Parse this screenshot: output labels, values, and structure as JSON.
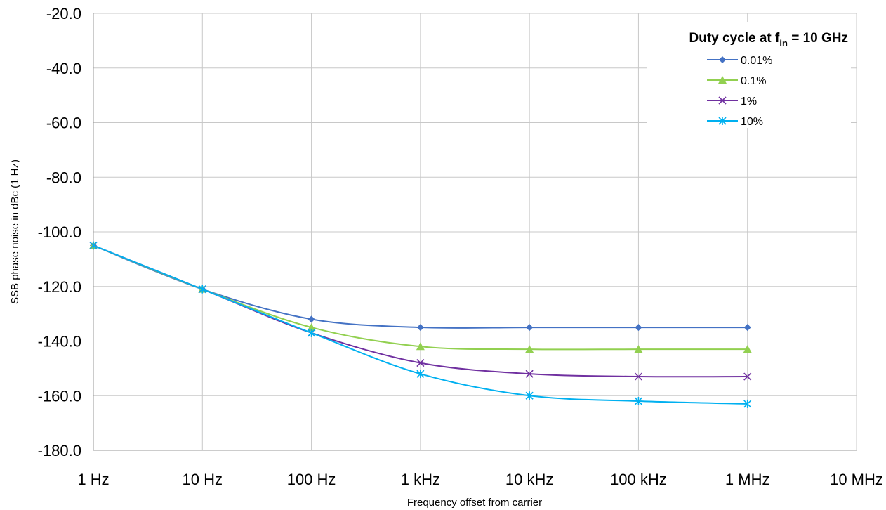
{
  "chart_data": {
    "type": "line",
    "x_scale": "log",
    "x": [
      1,
      10,
      100,
      1000,
      10000,
      100000,
      1000000
    ],
    "x_ticks": [
      1,
      10,
      100,
      1000,
      10000,
      100000,
      1000000,
      10000000
    ],
    "categories": [
      "1 Hz",
      "10 Hz",
      "100 Hz",
      "1 kHz",
      "10 kHz",
      "100 kHz",
      "1 MHz",
      "10 MHz"
    ],
    "xlabel": "Frequency offset from carrier",
    "ylabel": "SSB phase noise in dBc (1 Hz)",
    "ylim": [
      -180,
      -20
    ],
    "y_ticks": [
      "-20.0",
      "-40.0",
      "-60.0",
      "-80.0",
      "-100.0",
      "-120.0",
      "-140.0",
      "-160.0",
      "-180.0"
    ],
    "grid": true,
    "legend": {
      "title": "Duty cycle at f",
      "title_sub": "in",
      "title_suffix": " = 10 GHz",
      "placement": "top-right"
    },
    "series": [
      {
        "name": "0.01%",
        "color": "#4472C4",
        "marker": "diamond",
        "values": [
          -105,
          -121,
          -132,
          -135,
          -135,
          -135,
          -135
        ]
      },
      {
        "name": "0.1%",
        "color": "#92D050",
        "marker": "triangle",
        "values": [
          -105,
          -121,
          -135,
          -142,
          -143,
          -143,
          -143
        ]
      },
      {
        "name": "1%",
        "color": "#7030A0",
        "marker": "x",
        "values": [
          -105,
          -121,
          -137,
          -148,
          -152,
          -153,
          -153
        ]
      },
      {
        "name": "10%",
        "color": "#00B0F0",
        "marker": "star",
        "values": [
          -105,
          -121,
          -137,
          -152,
          -160,
          -162,
          -163
        ]
      }
    ]
  }
}
